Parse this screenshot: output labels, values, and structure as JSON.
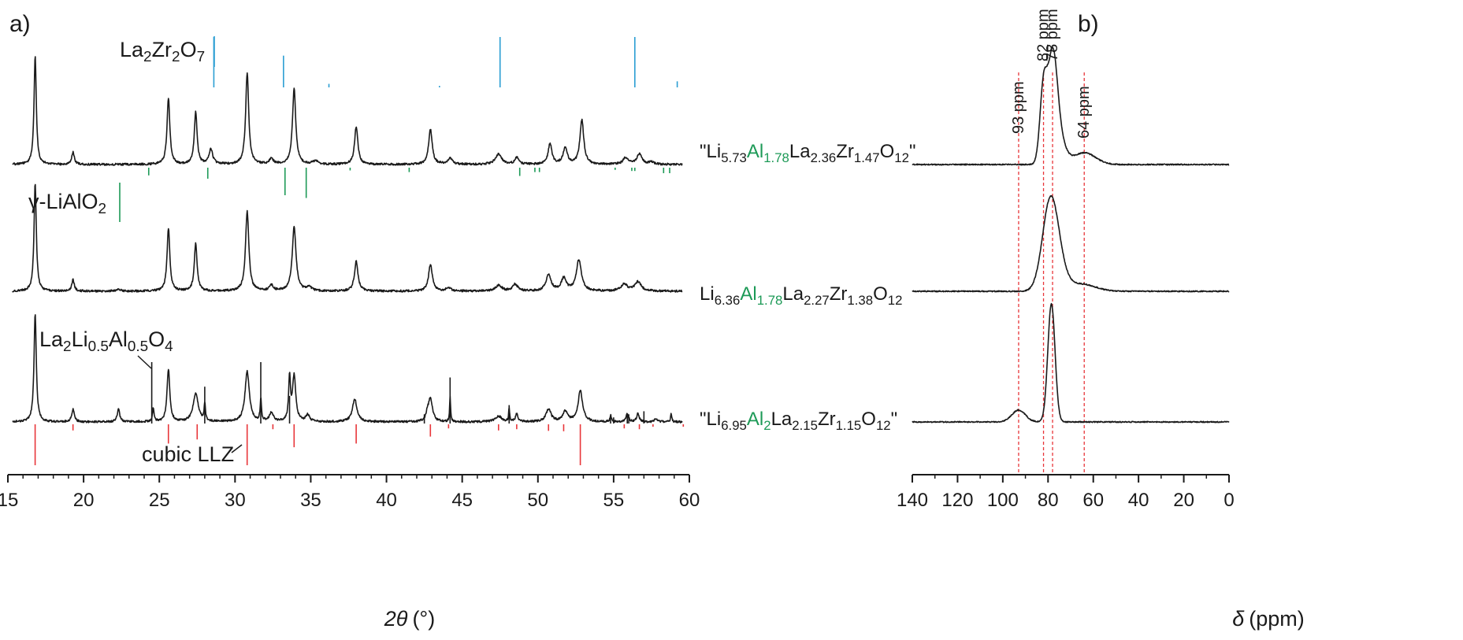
{
  "colors": {
    "black": "#1a1a1a",
    "la2zr2o7": "#2b9ed3",
    "lialo2": "#1d9a57",
    "llz": "#e8363a",
    "al_highlight": "#1d9a57",
    "ppm_line": "#e8363a"
  },
  "chart_data": [
    {
      "panel": "a)",
      "type": "line",
      "xlabel_symbol": "2θ",
      "xlabel_unit": "(°)",
      "xlim": [
        15,
        60
      ],
      "xticks": [
        15,
        20,
        25,
        30,
        35,
        40,
        45,
        50,
        55,
        60
      ],
      "series": [
        {
          "label_parts": [
            [
              "\"Li",
              ""
            ],
            [
              "5.73",
              "sub"
            ],
            [
              "Al",
              "al"
            ],
            [
              "1.78",
              "alsub"
            ],
            [
              "La",
              ""
            ],
            [
              "2.36",
              "sub"
            ],
            [
              "Zr",
              ""
            ],
            [
              "1.47",
              "sub"
            ],
            [
              "O",
              ""
            ],
            [
              "12",
              "sub"
            ],
            [
              "\"",
              ""
            ]
          ],
          "peaks": [
            [
              16.8,
              95,
              0.09
            ],
            [
              19.3,
              11,
              0.1
            ],
            [
              25.6,
              58,
              0.11
            ],
            [
              27.4,
              46,
              0.11
            ],
            [
              28.4,
              13,
              0.15
            ],
            [
              30.8,
              80,
              0.12
            ],
            [
              32.4,
              5,
              0.15
            ],
            [
              33.9,
              66,
              0.13
            ],
            [
              35.3,
              3,
              0.2
            ],
            [
              38.0,
              33,
              0.13
            ],
            [
              42.9,
              31,
              0.14
            ],
            [
              44.2,
              5,
              0.2
            ],
            [
              47.4,
              9,
              0.25
            ],
            [
              48.6,
              6,
              0.15
            ],
            [
              50.8,
              18,
              0.15
            ],
            [
              51.8,
              14,
              0.17
            ],
            [
              52.9,
              39,
              0.15
            ],
            [
              55.8,
              6,
              0.2
            ],
            [
              56.7,
              9,
              0.2
            ],
            [
              57.5,
              2,
              0.2
            ]
          ]
        },
        {
          "label_parts": [
            [
              "Li",
              ""
            ],
            [
              "6.36",
              "sub"
            ],
            [
              "Al",
              "al"
            ],
            [
              "1.78",
              "alsub"
            ],
            [
              "La",
              ""
            ],
            [
              "2.27",
              "sub"
            ],
            [
              "Zr",
              ""
            ],
            [
              "1.38",
              "sub"
            ],
            [
              "O",
              ""
            ],
            [
              "12",
              "sub"
            ]
          ],
          "peaks": [
            [
              16.8,
              95,
              0.09
            ],
            [
              19.3,
              10,
              0.1
            ],
            [
              22.3,
              2,
              0.15
            ],
            [
              25.6,
              55,
              0.11
            ],
            [
              27.4,
              42,
              0.11
            ],
            [
              30.8,
              70,
              0.13
            ],
            [
              32.4,
              5,
              0.15
            ],
            [
              33.9,
              56,
              0.15
            ],
            [
              34.9,
              3,
              0.2
            ],
            [
              38.0,
              26,
              0.14
            ],
            [
              42.9,
              23,
              0.15
            ],
            [
              44.1,
              3,
              0.2
            ],
            [
              47.4,
              5,
              0.25
            ],
            [
              48.5,
              6,
              0.2
            ],
            [
              50.7,
              14,
              0.2
            ],
            [
              51.7,
              11,
              0.2
            ],
            [
              52.7,
              27,
              0.2
            ],
            [
              55.7,
              6,
              0.25
            ],
            [
              56.6,
              8,
              0.25
            ]
          ]
        },
        {
          "label_parts": [
            [
              "\"Li",
              ""
            ],
            [
              "6.95",
              "sub"
            ],
            [
              "Al",
              "al"
            ],
            [
              "2",
              "alsub"
            ],
            [
              "La",
              ""
            ],
            [
              "2.15",
              "sub"
            ],
            [
              "Zr",
              ""
            ],
            [
              "1.15",
              "sub"
            ],
            [
              "O",
              ""
            ],
            [
              "12",
              "sub"
            ],
            [
              "\"",
              ""
            ]
          ],
          "peaks": [
            [
              16.8,
              95,
              0.09
            ],
            [
              19.3,
              11,
              0.1
            ],
            [
              22.3,
              12,
              0.09
            ],
            [
              24.6,
              12,
              0.06
            ],
            [
              25.6,
              46,
              0.11
            ],
            [
              27.4,
              25,
              0.2
            ],
            [
              28.0,
              15,
              0.05
            ],
            [
              30.8,
              44,
              0.17
            ],
            [
              31.7,
              20,
              0.05
            ],
            [
              32.4,
              8,
              0.15
            ],
            [
              33.6,
              38,
              0.07
            ],
            [
              33.9,
              40,
              0.13
            ],
            [
              34.8,
              6,
              0.15
            ],
            [
              37.9,
              20,
              0.18
            ],
            [
              42.7,
              6,
              0.1
            ],
            [
              42.9,
              20,
              0.16
            ],
            [
              44.2,
              22,
              0.04
            ],
            [
              47.4,
              5,
              0.25
            ],
            [
              48.1,
              12,
              0.04
            ],
            [
              48.6,
              7,
              0.1
            ],
            [
              50.7,
              11,
              0.2
            ],
            [
              51.8,
              9,
              0.2
            ],
            [
              52.8,
              27,
              0.18
            ],
            [
              54.8,
              6,
              0.05
            ],
            [
              55.9,
              7,
              0.1
            ],
            [
              56.6,
              7,
              0.1
            ],
            [
              57.8,
              3,
              0.1
            ],
            [
              58.8,
              7,
              0.05
            ]
          ]
        }
      ],
      "reference_phases": [
        {
          "name_parts": [
            [
              "La",
              ""
            ],
            [
              "2",
              "sub"
            ],
            [
              "Zr",
              ""
            ],
            [
              "2",
              "sub"
            ],
            [
              "O",
              ""
            ],
            [
              "7",
              "sub"
            ]
          ],
          "color_key": "la2zr2o7",
          "positions": [
            28.6,
            33.2,
            36.2,
            43.5,
            47.5,
            56.4,
            59.2
          ],
          "intensities": [
            100,
            63,
            7,
            3,
            100,
            100,
            12
          ]
        },
        {
          "name_parts": [
            [
              "γ-LiAlO",
              ""
            ],
            [
              "2",
              "sub"
            ]
          ],
          "color_key": "lialo2",
          "positions": [
            24.3,
            28.2,
            33.3,
            34.7,
            37.6,
            41.5,
            48.8,
            49.8,
            50.1,
            55.1,
            56.2,
            56.4,
            58.3,
            58.7
          ],
          "intensities": [
            14,
            20,
            50,
            55,
            5,
            8,
            15,
            8,
            8,
            4,
            6,
            6,
            10,
            10
          ]
        },
        {
          "name_parts": [
            [
              "La",
              ""
            ],
            [
              "2",
              "sub"
            ],
            [
              "Li",
              ""
            ],
            [
              "0.5",
              "sub"
            ],
            [
              "Al",
              ""
            ],
            [
              "0.5",
              "sub"
            ],
            [
              "O",
              ""
            ],
            [
              "4",
              "sub"
            ]
          ],
          "color_key": "black",
          "positions": [
            24.5,
            28.0,
            31.7,
            33.6,
            42.5,
            44.2,
            48.1,
            54.8,
            55.0,
            55.9,
            56.0,
            57.0
          ],
          "intensities": [
            100,
            60,
            100,
            45,
            15,
            75,
            30,
            10,
            10,
            15,
            15,
            20
          ]
        },
        {
          "name": "cubic LLZ",
          "color_key": "llz",
          "positions": [
            16.8,
            19.3,
            25.6,
            27.5,
            30.8,
            32.5,
            33.9,
            38.0,
            42.9,
            44.1,
            47.4,
            48.6,
            50.7,
            51.7,
            52.8,
            55.7,
            56.7,
            57.6,
            59.6
          ],
          "intensities": [
            100,
            15,
            47,
            37,
            100,
            12,
            56,
            47,
            30,
            10,
            15,
            12,
            16,
            17,
            100,
            10,
            12,
            6,
            6
          ]
        }
      ]
    },
    {
      "panel": "b)",
      "type": "line",
      "xlabel_symbol": "δ",
      "xlabel_unit": "(ppm)",
      "xlim": [
        140,
        0
      ],
      "xticks": [
        140,
        120,
        100,
        80,
        60,
        40,
        20,
        0
      ],
      "reference_lines": [
        {
          "value": 93,
          "label": "93 ppm"
        },
        {
          "value": 82,
          "label": "82 ppm"
        },
        {
          "value": 78,
          "label": "78 ppm"
        },
        {
          "value": 64,
          "label": "64 ppm"
        }
      ],
      "series": [
        {
          "peaks": [
            [
              82,
              95,
              1.6
            ],
            [
              78,
              112,
              2.0
            ],
            [
              76,
              40,
              3.0
            ],
            [
              64,
              15,
              5.0
            ]
          ]
        },
        {
          "peaks": [
            [
              79,
              105,
              3.5
            ],
            [
              76,
              20,
              4.0
            ],
            [
              65,
              9,
              6.0
            ]
          ]
        },
        {
          "peaks": [
            [
              93,
              15,
              3.0
            ],
            [
              78.5,
              150,
              1.6
            ]
          ]
        }
      ]
    }
  ]
}
